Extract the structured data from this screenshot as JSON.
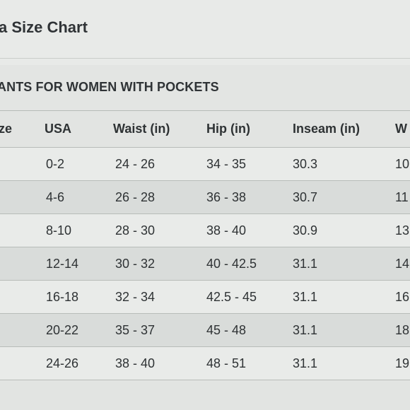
{
  "title": "a Size Chart",
  "section_title": "ANTS FOR WOMEN WITH POCKETS",
  "table": {
    "headers": [
      "ze",
      "USA",
      "Waist (in)",
      "Hip (in)",
      "Inseam (in)",
      "W"
    ],
    "rows": [
      [
        "",
        "0-2",
        "24 - 26",
        "34 - 35",
        "30.3",
        "10"
      ],
      [
        "",
        "4-6",
        "26 - 28",
        "36 - 38",
        "30.7",
        "11"
      ],
      [
        "",
        "8-10",
        "28 - 30",
        "38 - 40",
        "30.9",
        "13"
      ],
      [
        "",
        "12-14",
        "30 - 32",
        "40 - 42.5",
        "31.1",
        "14"
      ],
      [
        "",
        "16-18",
        "32 - 34",
        "42.5 - 45",
        "31.1",
        "16"
      ],
      [
        "",
        "20-22",
        "35 - 37",
        "45 - 48",
        "31.1",
        "18"
      ],
      [
        "",
        "24-26",
        "38 - 40",
        "48 - 51",
        "31.1",
        "19"
      ]
    ]
  }
}
